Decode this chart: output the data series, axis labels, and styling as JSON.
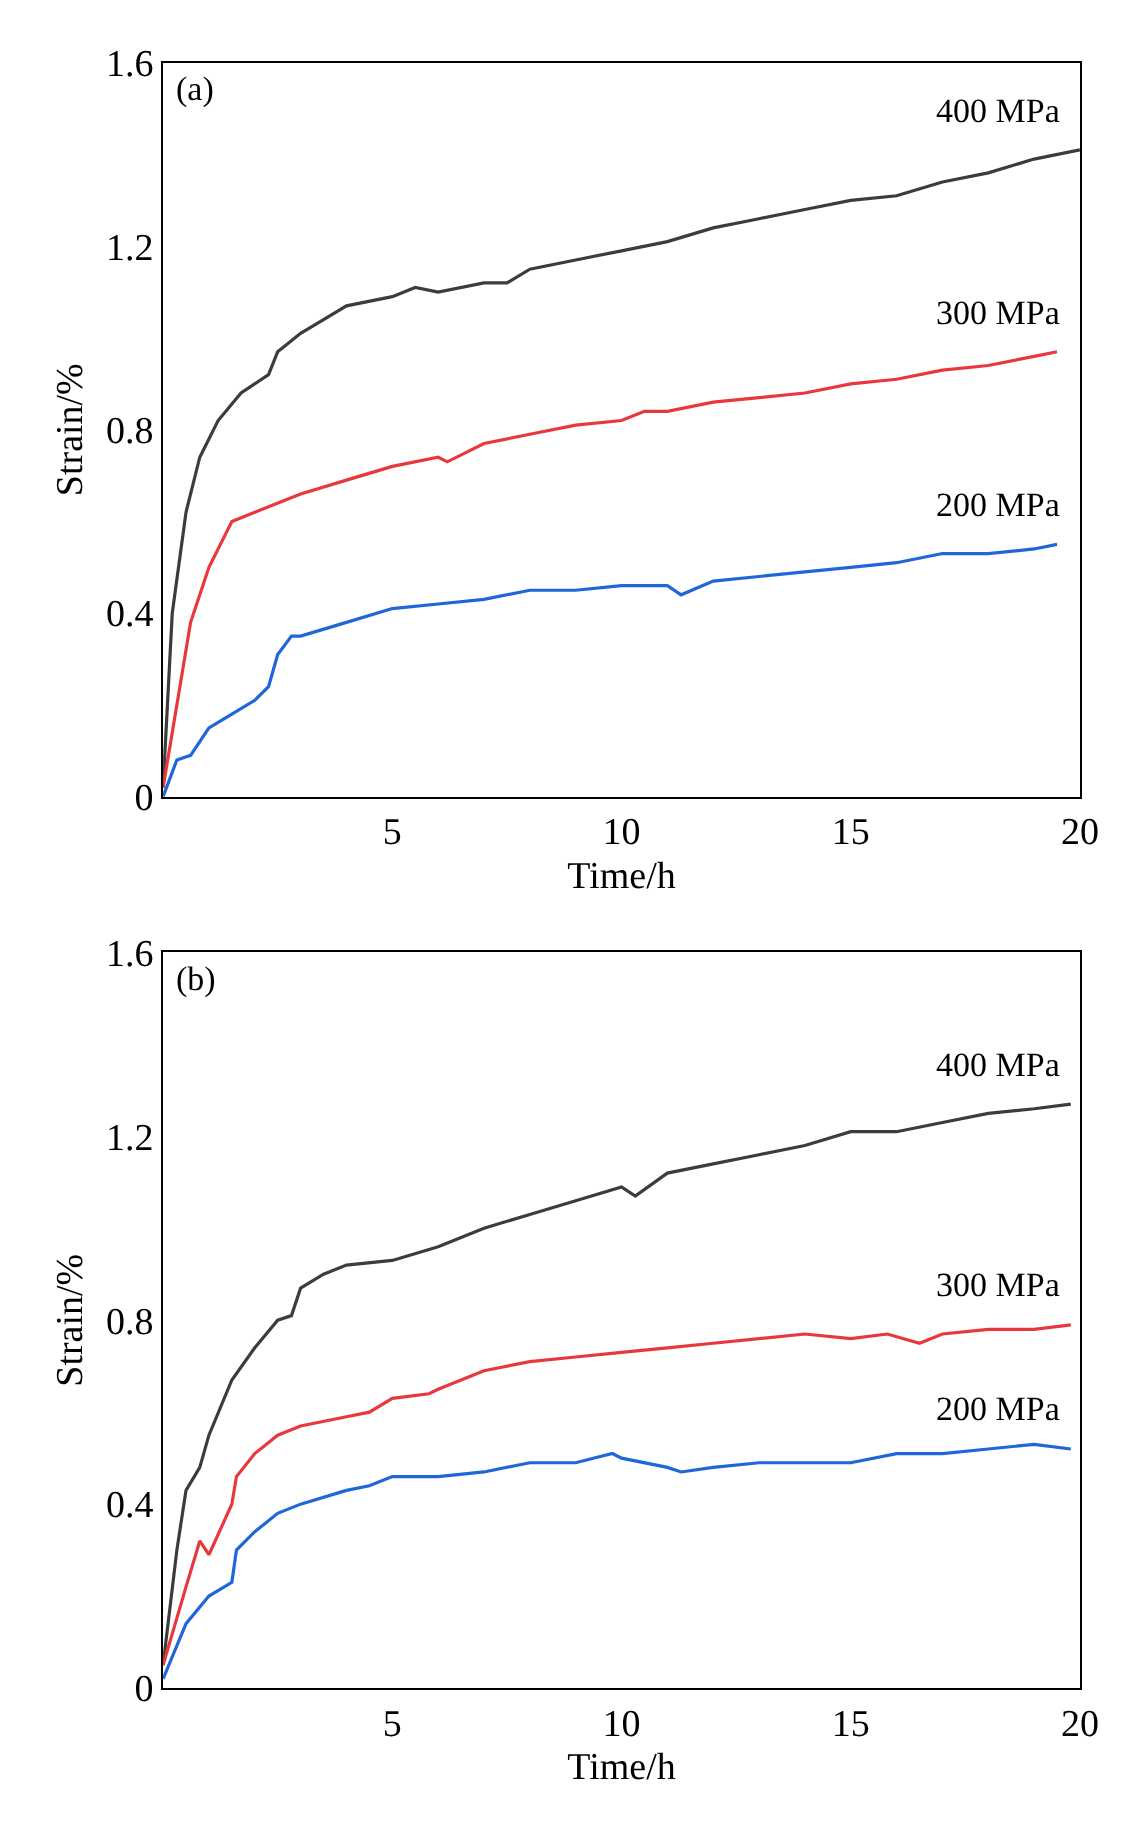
{
  "chart_data": [
    {
      "type": "line",
      "title": "(a)",
      "xlabel": "Time/h",
      "ylabel": "Strain/%",
      "xlim": [
        0,
        20
      ],
      "ylim": [
        0,
        1.6
      ],
      "xticks": [
        5,
        10,
        15,
        20
      ],
      "yticks": [
        0,
        0.4,
        0.8,
        1.2,
        1.6
      ],
      "line_style": "solid",
      "series": [
        {
          "name": "400 MPa",
          "color": "#3c3c3c",
          "x": [
            0,
            0.2,
            0.5,
            0.8,
            1.2,
            1.7,
            2.3,
            2.5,
            3,
            3.5,
            4,
            5,
            5.5,
            6,
            7,
            7.5,
            8,
            9,
            10,
            11,
            12,
            13,
            14,
            15,
            16,
            17,
            18,
            19,
            20
          ],
          "values": [
            0.02,
            0.4,
            0.62,
            0.74,
            0.82,
            0.88,
            0.92,
            0.97,
            1.01,
            1.04,
            1.07,
            1.09,
            1.11,
            1.1,
            1.12,
            1.12,
            1.15,
            1.17,
            1.19,
            1.21,
            1.24,
            1.26,
            1.28,
            1.3,
            1.31,
            1.34,
            1.36,
            1.39,
            1.41
          ]
        },
        {
          "name": "300 MPa",
          "color": "#e8383d",
          "x": [
            0,
            0.3,
            0.6,
            1,
            1.5,
            2,
            3,
            4,
            5,
            6,
            6.2,
            7,
            8,
            9,
            10,
            10.5,
            11,
            12,
            13,
            14,
            15,
            16,
            17,
            18,
            19,
            19.5
          ],
          "values": [
            0.02,
            0.2,
            0.38,
            0.5,
            0.6,
            0.62,
            0.66,
            0.69,
            0.72,
            0.74,
            0.73,
            0.77,
            0.79,
            0.81,
            0.82,
            0.84,
            0.84,
            0.86,
            0.87,
            0.88,
            0.9,
            0.91,
            0.93,
            0.94,
            0.96,
            0.97
          ]
        },
        {
          "name": "200 MPa",
          "color": "#1f66d8",
          "x": [
            0,
            0.3,
            0.6,
            1,
            1.5,
            2,
            2.3,
            2.5,
            2.8,
            3,
            4,
            5,
            6,
            7,
            8,
            9,
            10,
            11,
            11.3,
            12,
            13,
            14,
            15,
            16,
            17,
            18,
            19,
            19.5
          ],
          "values": [
            0,
            0.08,
            0.09,
            0.15,
            0.18,
            0.21,
            0.24,
            0.31,
            0.35,
            0.35,
            0.38,
            0.41,
            0.42,
            0.43,
            0.45,
            0.45,
            0.46,
            0.46,
            0.44,
            0.47,
            0.48,
            0.49,
            0.5,
            0.51,
            0.53,
            0.53,
            0.54,
            0.55
          ]
        }
      ]
    },
    {
      "type": "line",
      "title": "(b)",
      "xlabel": "Time/h",
      "ylabel": "Strain/%",
      "xlim": [
        0,
        20
      ],
      "ylim": [
        0,
        1.6
      ],
      "xticks": [
        5,
        10,
        15,
        20
      ],
      "yticks": [
        0,
        0.4,
        0.8,
        1.2,
        1.6
      ],
      "line_style": "solid",
      "series": [
        {
          "name": "400 MPa",
          "color": "#3c3c3c",
          "x": [
            0,
            0.3,
            0.5,
            0.8,
            1,
            1.5,
            2,
            2.5,
            2.8,
            3,
            3.5,
            4,
            5,
            6,
            7,
            8,
            9,
            10,
            10.3,
            11,
            12,
            13,
            14,
            15,
            16,
            17,
            18,
            19,
            19.8
          ],
          "values": [
            0.05,
            0.3,
            0.43,
            0.48,
            0.55,
            0.67,
            0.74,
            0.8,
            0.81,
            0.87,
            0.9,
            0.92,
            0.93,
            0.96,
            1.0,
            1.03,
            1.06,
            1.09,
            1.07,
            1.12,
            1.14,
            1.16,
            1.18,
            1.21,
            1.21,
            1.23,
            1.25,
            1.26,
            1.27
          ]
        },
        {
          "name": "300 MPa",
          "color": "#e8383d",
          "x": [
            0,
            0.5,
            0.8,
            1,
            1.5,
            1.6,
            2,
            2.5,
            3,
            4,
            4.5,
            5,
            5.8,
            6,
            7,
            8,
            9,
            10,
            11,
            12,
            13,
            14,
            15,
            15.8,
            16.5,
            17,
            18,
            19,
            19.8
          ],
          "values": [
            0.05,
            0.22,
            0.32,
            0.29,
            0.4,
            0.46,
            0.51,
            0.55,
            0.57,
            0.59,
            0.6,
            0.63,
            0.64,
            0.65,
            0.69,
            0.71,
            0.72,
            0.73,
            0.74,
            0.75,
            0.76,
            0.77,
            0.76,
            0.77,
            0.75,
            0.77,
            0.78,
            0.78,
            0.79
          ]
        },
        {
          "name": "200 MPa",
          "color": "#1f66d8",
          "x": [
            0,
            0.5,
            1,
            1.5,
            1.6,
            2,
            2.5,
            3,
            4,
            4.5,
            5,
            6,
            7,
            8,
            9,
            9.8,
            10,
            11,
            11.3,
            12,
            13,
            14,
            15,
            16,
            17,
            18,
            19,
            19.8
          ],
          "values": [
            0.02,
            0.14,
            0.2,
            0.23,
            0.3,
            0.34,
            0.38,
            0.4,
            0.43,
            0.44,
            0.46,
            0.46,
            0.47,
            0.49,
            0.49,
            0.51,
            0.5,
            0.48,
            0.47,
            0.48,
            0.49,
            0.49,
            0.49,
            0.51,
            0.51,
            0.52,
            0.53,
            0.52
          ]
        }
      ]
    }
  ]
}
